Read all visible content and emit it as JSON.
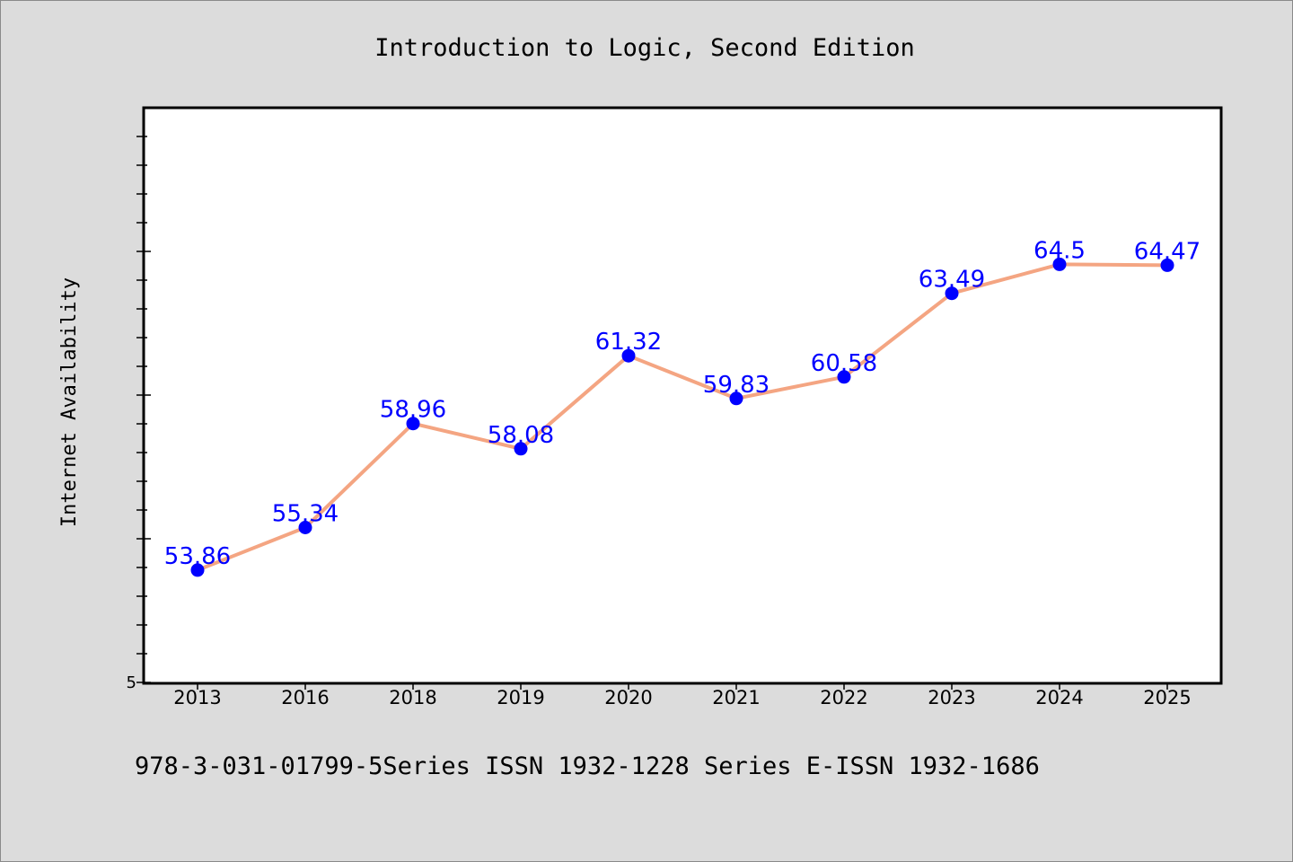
{
  "chart_data": {
    "type": "line",
    "title": "Introduction to Logic, Second Edition",
    "xlabel": "",
    "ylabel": "Internet Availability",
    "categories": [
      "2013",
      "2016",
      "2018",
      "2019",
      "2020",
      "2021",
      "2022",
      "2023",
      "2024",
      "2025"
    ],
    "series": [
      {
        "values": [
          53.86,
          55.34,
          58.96,
          58.08,
          61.32,
          59.83,
          60.58,
          63.49,
          64.5,
          64.47
        ]
      }
    ],
    "data_labels": [
      "53.86",
      "55.34",
      "58.96",
      "58.08",
      "61.32",
      "59.83",
      "60.58",
      "63.49",
      "64.5",
      "64.47"
    ],
    "y_tick_labels": [
      "5"
    ],
    "ylim": [
      49.95,
      69.95
    ],
    "grid": false,
    "legend": "none",
    "footer": "978-3-031-01799-5Series ISSN 1932-1228 Series E-ISSN 1932-1686",
    "colors": {
      "background": "#dcdcdc",
      "plot_background": "#ffffff",
      "line": "#f4a582",
      "marker": "#0000ff",
      "data_label": "#0000ff"
    }
  }
}
